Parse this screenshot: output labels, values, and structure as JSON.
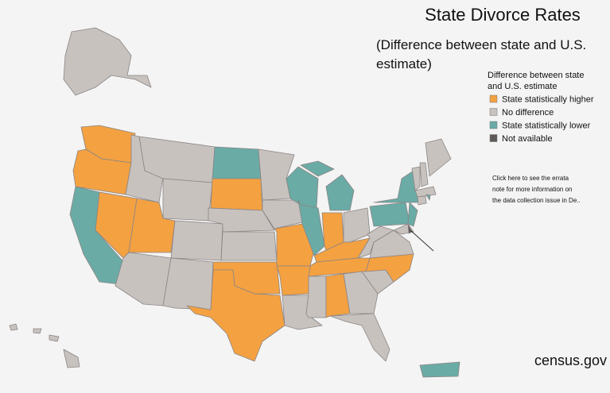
{
  "title": "State Divorce Rates",
  "subtitle": [
    "(Difference between state and U.S.",
    "estimate)"
  ],
  "legend": {
    "title": [
      "Difference between state",
      "and U.S. estimate"
    ],
    "items": [
      {
        "label": "State statistically higher",
        "color": "#f4a142"
      },
      {
        "label": "No difference",
        "color": "#c8c2bf"
      },
      {
        "label": "State statistically lower",
        "color": "#6aaba6"
      },
      {
        "label": "Not available",
        "color": "#5e5a59"
      }
    ]
  },
  "note": [
    "Click here to see the errata",
    "note for more information on",
    "the data collection issue in De.."
  ],
  "source": "census.gov"
}
